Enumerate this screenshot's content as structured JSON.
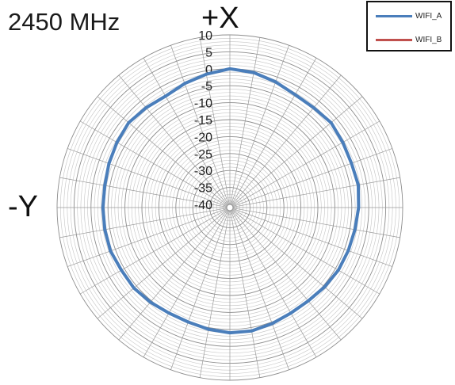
{
  "title": "2450 MHz",
  "top_axis_label": "+X",
  "left_axis_label": "-Y",
  "chart_data": {
    "type": "polar-line",
    "radial_ticks": [
      "10",
      "5",
      "0",
      "-5",
      "-10",
      "-15",
      "-20",
      "-25",
      "-30",
      "-35",
      "-40"
    ],
    "rlim": [
      -40,
      10
    ],
    "angular_step_deg": 10,
    "grid": true,
    "legend_position": "top-right",
    "series": [
      {
        "name": "WIFI_A",
        "color": "#4a7ebb",
        "angles_deg": [
          0,
          10,
          20,
          30,
          40,
          50,
          60,
          70,
          80,
          90,
          100,
          110,
          120,
          130,
          140,
          150,
          160,
          170,
          180,
          190,
          200,
          210,
          220,
          230,
          240,
          250,
          260,
          270,
          280,
          290,
          300,
          310,
          320,
          330,
          340,
          350
        ],
        "values": [
          0,
          -0.5,
          -1.5,
          -2.5,
          -2.5,
          -2,
          -2.5,
          -2.8,
          -2.5,
          -3,
          -3.5,
          -3.8,
          -4,
          -4.5,
          -5,
          -5,
          -4.5,
          -4,
          -4,
          -4.5,
          -5,
          -5,
          -4.5,
          -4,
          -4,
          -3.5,
          -3.5,
          -3.5,
          -3.5,
          -3,
          -2.5,
          -2,
          -2.5,
          -3,
          -2,
          -1
        ]
      },
      {
        "name": "WIFI_B",
        "color": "#c0504d",
        "angles_deg": [],
        "values": []
      }
    ]
  }
}
